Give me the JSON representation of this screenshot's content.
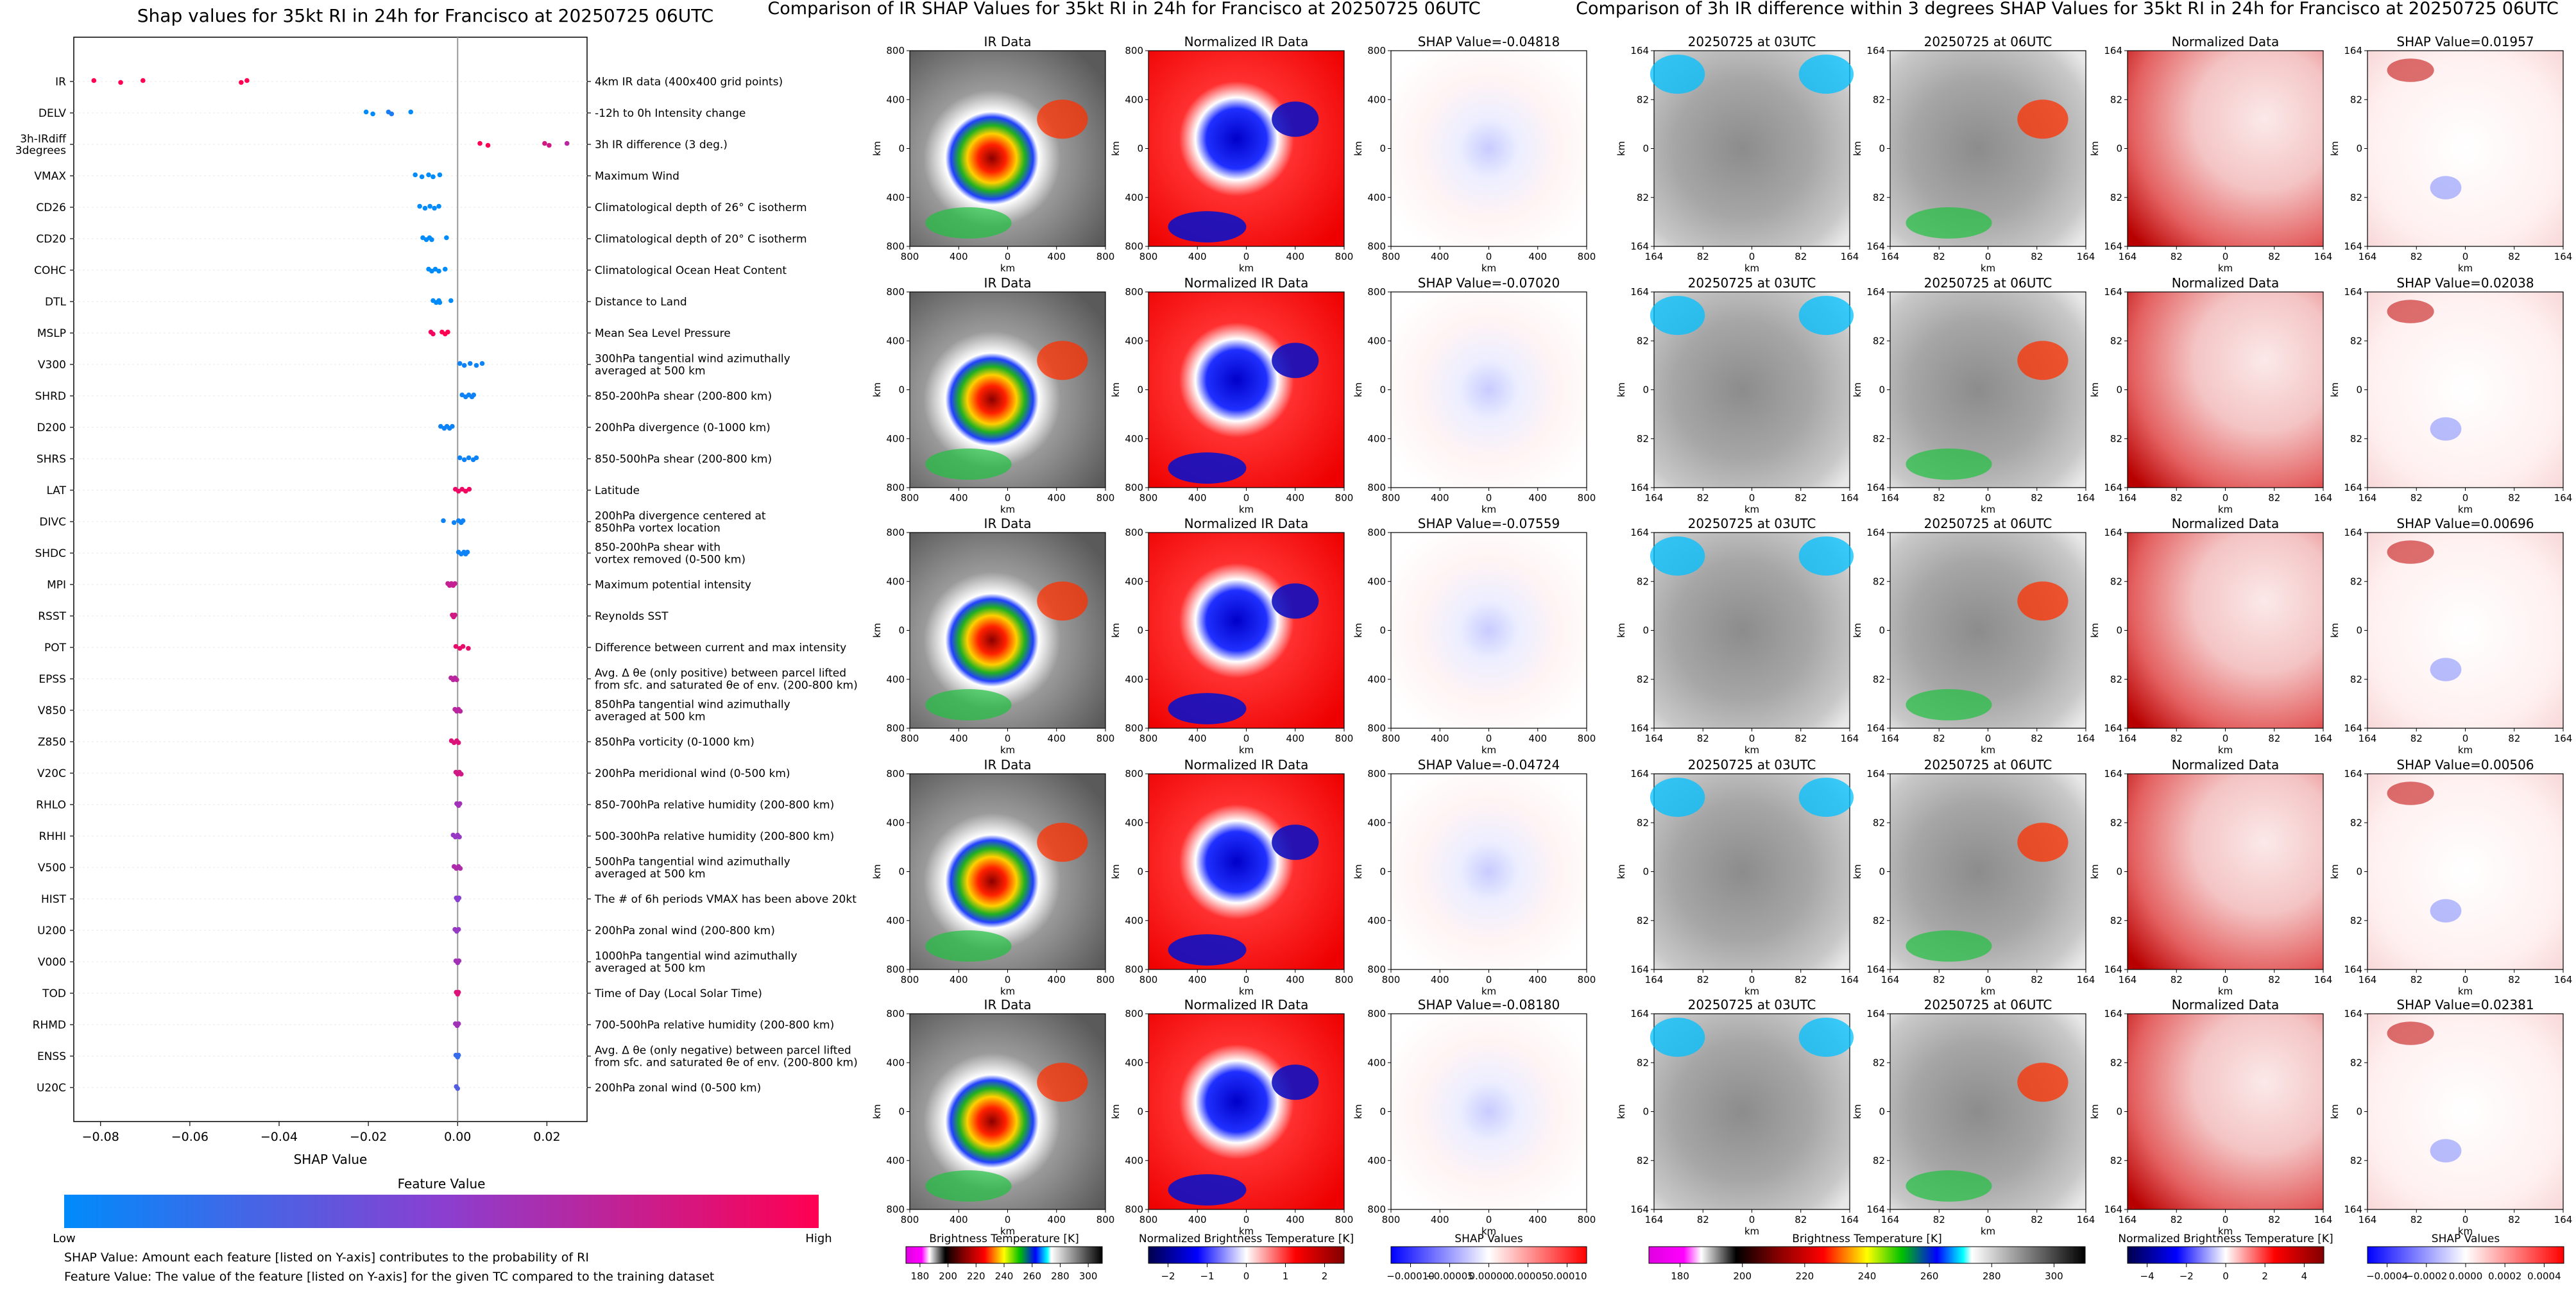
{
  "figure": {
    "left_title": "Shap values for 35kt RI in 24h for Francisco at 20250725 06UTC",
    "mid_title": "Comparison of IR SHAP Values for 35kt RI in 24h for Francisco at 20250725 06UTC",
    "right_title": "Comparison of 3h IR difference within 3 degrees SHAP Values for 35kt RI in 24h for Francisco at 20250725 06UTC",
    "footnote_1": "SHAP Value: Amount each feature [listed on Y-axis] contributes to the probability of RI",
    "footnote_2": "Feature Value: The value of the feature [listed on Y-axis] for the given TC compared to the training dataset"
  },
  "chart_data": [
    {
      "type": "scatter",
      "title": "Shap values for 35kt RI in 24h for Francisco at 20250725 06UTC",
      "xlabel": "SHAP Value",
      "xlim": [
        -0.086,
        0.029
      ],
      "xticks": [
        "−0.08",
        "−0.06",
        "−0.04",
        "−0.02",
        "0.00",
        "0.02"
      ],
      "xtick_values": [
        -0.08,
        -0.06,
        -0.04,
        -0.02,
        0.0,
        0.02
      ],
      "colorbar": {
        "title": "Feature Value",
        "low_label": "Low",
        "high_label": "High",
        "low_color": "#008bfb",
        "high_color": "#ff0052"
      },
      "features": [
        {
          "name": "IR",
          "desc": "4km IR data (400x400 grid points)",
          "points": [
            [
              -0.0815,
              1
            ],
            [
              -0.0755,
              1
            ],
            [
              -0.0705,
              1
            ],
            [
              -0.0485,
              1
            ],
            [
              -0.0472,
              1
            ]
          ]
        },
        {
          "name": "DELV",
          "desc": "-12h to 0h Intensity change",
          "points": [
            [
              -0.0205,
              0
            ],
            [
              -0.019,
              0
            ],
            [
              -0.0155,
              0.1
            ],
            [
              -0.0148,
              0.1
            ],
            [
              -0.0105,
              0
            ]
          ]
        },
        {
          "name": "3h-IRdiff\n3degrees",
          "desc": "3h IR difference (3 deg.)",
          "points": [
            [
              0.005,
              1
            ],
            [
              0.0068,
              1
            ],
            [
              0.0195,
              0.8
            ],
            [
              0.0205,
              0.8
            ],
            [
              0.0245,
              0.7
            ]
          ]
        },
        {
          "name": "VMAX",
          "desc": "Maximum Wind",
          "points": [
            [
              -0.0095,
              0
            ],
            [
              -0.008,
              0
            ],
            [
              -0.0065,
              0
            ],
            [
              -0.0055,
              0
            ],
            [
              -0.004,
              0
            ]
          ]
        },
        {
          "name": "CD26",
          "desc": "Climatological depth of 26° C isotherm",
          "points": [
            [
              -0.0085,
              0
            ],
            [
              -0.0073,
              0
            ],
            [
              -0.0062,
              0
            ],
            [
              -0.0052,
              0
            ],
            [
              -0.0042,
              0
            ]
          ]
        },
        {
          "name": "CD20",
          "desc": "Climatological depth of 20° C isotherm",
          "points": [
            [
              -0.0078,
              0
            ],
            [
              -0.007,
              0
            ],
            [
              -0.0063,
              0
            ],
            [
              -0.0058,
              0
            ],
            [
              -0.0025,
              0
            ]
          ]
        },
        {
          "name": "COHC",
          "desc": "Climatological Ocean Heat Content",
          "points": [
            [
              -0.0065,
              0
            ],
            [
              -0.0058,
              0
            ],
            [
              -0.005,
              0
            ],
            [
              -0.0042,
              0
            ],
            [
              -0.0028,
              0
            ]
          ]
        },
        {
          "name": "DTL",
          "desc": "Distance to Land",
          "points": [
            [
              -0.0055,
              0
            ],
            [
              -0.0048,
              0
            ],
            [
              -0.0042,
              0
            ],
            [
              -0.004,
              0
            ],
            [
              -0.0015,
              0
            ]
          ]
        },
        {
          "name": "MSLP",
          "desc": "Mean Sea Level Pressure",
          "points": [
            [
              -0.006,
              0.95
            ],
            [
              -0.0055,
              0.95
            ],
            [
              -0.0035,
              1
            ],
            [
              -0.0028,
              1
            ],
            [
              -0.0022,
              1
            ]
          ]
        },
        {
          "name": "V300",
          "desc": "300hPa tangential wind azimuthally\naveraged at 500 km",
          "points": [
            [
              0.0005,
              0.05
            ],
            [
              0.0015,
              0.05
            ],
            [
              0.0028,
              0.05
            ],
            [
              0.0042,
              0.05
            ],
            [
              0.0055,
              0.05
            ]
          ]
        },
        {
          "name": "SHRD",
          "desc": "850-200hPa shear (200-800 km)",
          "points": [
            [
              0.001,
              0.05
            ],
            [
              0.0018,
              0.05
            ],
            [
              0.0025,
              0.05
            ],
            [
              0.0032,
              0.05
            ],
            [
              0.0036,
              0.05
            ]
          ]
        },
        {
          "name": "D200",
          "desc": "200hPa divergence (0-1000 km)",
          "points": [
            [
              -0.0038,
              0.05
            ],
            [
              -0.003,
              0.05
            ],
            [
              -0.0024,
              0.05
            ],
            [
              -0.0018,
              0.05
            ],
            [
              -0.0012,
              0.05
            ]
          ]
        },
        {
          "name": "SHRS",
          "desc": "850-500hPa shear (200-800 km)",
          "points": [
            [
              0.0005,
              0.05
            ],
            [
              0.0015,
              0.05
            ],
            [
              0.0025,
              0.05
            ],
            [
              0.0035,
              0.05
            ],
            [
              0.0042,
              0.05
            ]
          ]
        },
        {
          "name": "LAT",
          "desc": "Latitude",
          "points": [
            [
              -0.0005,
              0.92
            ],
            [
              0.0002,
              0.92
            ],
            [
              0.001,
              0.92
            ],
            [
              0.0018,
              0.95
            ],
            [
              0.0026,
              0.95
            ]
          ]
        },
        {
          "name": "DIVC",
          "desc": "200hPa divergence centered at\n850hPa vortex location",
          "points": [
            [
              -0.0032,
              0.05
            ],
            [
              -0.0008,
              0.05
            ],
            [
              0.0002,
              0.05
            ],
            [
              0.0008,
              0.05
            ],
            [
              0.0012,
              0.05
            ]
          ]
        },
        {
          "name": "SHDC",
          "desc": "850-200hPa shear with\nvortex removed (0-500 km)",
          "points": [
            [
              0.0002,
              0.05
            ],
            [
              0.0008,
              0.05
            ],
            [
              0.0014,
              0.05
            ],
            [
              0.0018,
              0.05
            ],
            [
              0.0022,
              0.05
            ]
          ]
        },
        {
          "name": "MPI",
          "desc": "Maximum potential intensity",
          "points": [
            [
              -0.0022,
              0.75
            ],
            [
              -0.0018,
              0.75
            ],
            [
              -0.0014,
              0.75
            ],
            [
              -0.001,
              0.75
            ],
            [
              -0.0006,
              0.75
            ]
          ]
        },
        {
          "name": "RSST",
          "desc": "Reynolds SST",
          "points": [
            [
              -0.0012,
              0.8
            ],
            [
              -0.0009,
              0.8
            ],
            [
              -0.0006,
              0.8
            ]
          ]
        },
        {
          "name": "POT",
          "desc": "Difference between current and max intensity",
          "points": [
            [
              -0.0004,
              0.9
            ],
            [
              0.0005,
              0.9
            ],
            [
              0.0012,
              0.9
            ],
            [
              0.0024,
              0.9
            ]
          ]
        },
        {
          "name": "EPSS",
          "desc": "Avg. Δ θe (only positive) between parcel lifted\nfrom sfc. and saturated θe of env. (200-800 km)",
          "points": [
            [
              -0.0015,
              0.7
            ],
            [
              -0.001,
              0.7
            ],
            [
              -0.0006,
              0.7
            ],
            [
              -0.0002,
              0.7
            ]
          ]
        },
        {
          "name": "V850",
          "desc": "850hPa tangential wind azimuthally\naveraged at 500 km",
          "points": [
            [
              -0.0006,
              0.7
            ],
            [
              -0.0002,
              0.7
            ],
            [
              0.0002,
              0.7
            ],
            [
              0.0006,
              0.7
            ]
          ]
        },
        {
          "name": "Z850",
          "desc": "850hPa vorticity (0-1000 km)",
          "points": [
            [
              -0.0014,
              0.85
            ],
            [
              -0.0008,
              0.85
            ],
            [
              -0.0002,
              0.85
            ],
            [
              0.0002,
              0.85
            ]
          ]
        },
        {
          "name": "V20C",
          "desc": "200hPa meridional wind (0-500 km)",
          "points": [
            [
              -0.0004,
              0.8
            ],
            [
              0,
              0.8
            ],
            [
              0.0004,
              0.8
            ],
            [
              0.0008,
              0.8
            ]
          ]
        },
        {
          "name": "RHLO",
          "desc": "850-700hPa relative humidity (200-800 km)",
          "points": [
            [
              -0.0002,
              0.6
            ],
            [
              0.0002,
              0.6
            ],
            [
              0.0005,
              0.6
            ]
          ]
        },
        {
          "name": "RHHI",
          "desc": "500-300hPa relative humidity (200-800 km)",
          "points": [
            [
              -0.001,
              0.55
            ],
            [
              -0.0005,
              0.55
            ],
            [
              0,
              0.55
            ],
            [
              0.0004,
              0.55
            ]
          ]
        },
        {
          "name": "V500",
          "desc": "500hPa tangential wind azimuthally\naveraged at 500 km",
          "points": [
            [
              -0.0008,
              0.65
            ],
            [
              -0.0003,
              0.65
            ],
            [
              0.0002,
              0.65
            ],
            [
              0.0006,
              0.65
            ]
          ]
        },
        {
          "name": "HIST",
          "desc": "The # of 6h periods VMAX has been above 20kt",
          "points": [
            [
              -0.0003,
              0.5
            ],
            [
              0,
              0.5
            ],
            [
              0.0003,
              0.5
            ]
          ]
        },
        {
          "name": "U200",
          "desc": "200hPa zonal wind (200-800 km)",
          "points": [
            [
              -0.0006,
              0.55
            ],
            [
              -0.0002,
              0.55
            ],
            [
              0.0002,
              0.55
            ]
          ]
        },
        {
          "name": "V000",
          "desc": "1000hPa tangential wind azimuthally\naveraged at 500 km",
          "points": [
            [
              -0.0004,
              0.6
            ],
            [
              0,
              0.6
            ],
            [
              0.0003,
              0.6
            ]
          ]
        },
        {
          "name": "TOD",
          "desc": "Time of Day (Local Solar Time)",
          "points": [
            [
              -0.0003,
              0.85
            ],
            [
              0,
              0.85
            ],
            [
              0.0002,
              0.85
            ]
          ]
        },
        {
          "name": "RHMD",
          "desc": "700-500hPa relative humidity (200-800 km)",
          "points": [
            [
              -0.0005,
              0.6
            ],
            [
              -0.0001,
              0.6
            ],
            [
              0.0002,
              0.6
            ]
          ]
        },
        {
          "name": "ENSS",
          "desc": "Avg. Δ θe (only negative) between parcel lifted\nfrom sfc. and saturated θe of env. (200-800 km)",
          "points": [
            [
              -0.0004,
              0.2
            ],
            [
              0,
              0.2
            ],
            [
              0.0002,
              0.2
            ]
          ]
        },
        {
          "name": "U20C",
          "desc": "200hPa zonal wind (0-500 km)",
          "points": [
            [
              -0.0003,
              0.3
            ],
            [
              0,
              0.3
            ]
          ]
        }
      ]
    },
    {
      "type": "heatmap",
      "title": "Comparison of IR SHAP Values for 35kt RI in 24h for Francisco at 20250725 06UTC",
      "column_titles": [
        "IR Data",
        "Normalized IR Data"
      ],
      "shap_titles": [
        "SHAP Value=-0.04818",
        "SHAP Value=-0.07020",
        "SHAP Value=-0.07559",
        "SHAP Value=-0.04724",
        "SHAP Value=-0.08180"
      ],
      "xlabel": "km",
      "ylabel": "km",
      "xticks": [
        "800",
        "400",
        "0",
        "400",
        "800"
      ],
      "yticks": [
        "800",
        "400",
        "0",
        "400",
        "800"
      ],
      "colorbars": [
        {
          "label": "Brightness Temperature [K]",
          "ticks": [
            "180",
            "200",
            "220",
            "240",
            "260",
            "280",
            "300"
          ]
        },
        {
          "label": "Normalized Brightness Temperature [K]",
          "ticks": [
            "−2",
            "−1",
            "0",
            "1",
            "2"
          ]
        },
        {
          "label": "SHAP Values",
          "ticks": [
            "−0.00010",
            "−0.00005",
            "0.00000",
            "0.00005",
            "0.00010"
          ]
        }
      ]
    },
    {
      "type": "heatmap",
      "title": "Comparison of 3h IR difference within 3 degrees SHAP Values for 35kt RI in 24h for Francisco at 20250725 06UTC",
      "column_titles": [
        "20250725 at 03UTC",
        "20250725 at 06UTC",
        "Normalized Data"
      ],
      "shap_titles": [
        "SHAP Value=0.01957",
        "SHAP Value=0.02038",
        "SHAP Value=0.00696",
        "SHAP Value=0.00506",
        "SHAP Value=0.02381"
      ],
      "xlabel": "km",
      "ylabel": "km",
      "xticks": [
        "164",
        "82",
        "0",
        "82",
        "164"
      ],
      "yticks": [
        "164",
        "82",
        "0",
        "82",
        "164"
      ],
      "colorbars": [
        {
          "label": "Brightness Temperature [K]",
          "ticks": [
            "180",
            "200",
            "220",
            "240",
            "260",
            "280",
            "300"
          ]
        },
        {
          "label": "Normalized Brightness Temperature [K]",
          "ticks": [
            "−4",
            "−2",
            "0",
            "2",
            "4"
          ]
        },
        {
          "label": "SHAP Values",
          "ticks": [
            "−0.0004",
            "−0.0002",
            "0.0000",
            "0.0002",
            "0.0004"
          ]
        }
      ]
    }
  ]
}
